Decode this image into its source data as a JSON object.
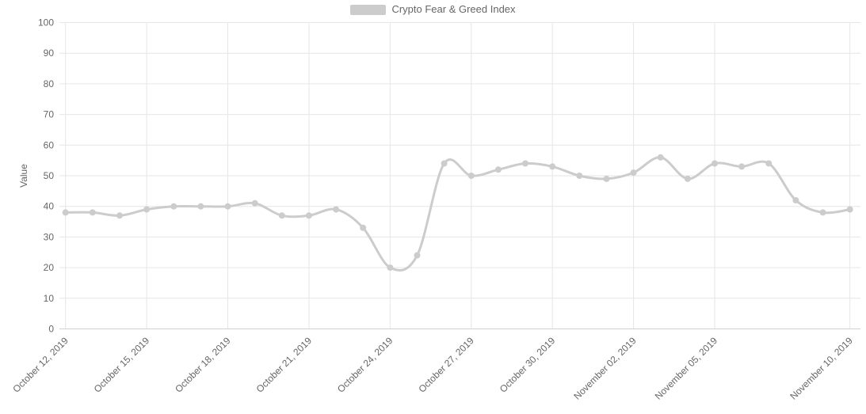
{
  "chart_data": {
    "type": "line",
    "title": "",
    "xlabel": "",
    "ylabel": "Value",
    "ylim": [
      0,
      100
    ],
    "ytick_step": 10,
    "grid": true,
    "legend_position": "top-center",
    "line_style": "spline-with-round-markers",
    "y_ticks": [
      0,
      10,
      20,
      30,
      40,
      50,
      60,
      70,
      80,
      90,
      100
    ],
    "x_ticks": [
      {
        "index": 0,
        "label": "October 12, 2019"
      },
      {
        "index": 3,
        "label": "October 15, 2019"
      },
      {
        "index": 6,
        "label": "October 18, 2019"
      },
      {
        "index": 9,
        "label": "October 21, 2019"
      },
      {
        "index": 12,
        "label": "October 24, 2019"
      },
      {
        "index": 15,
        "label": "October 27, 2019"
      },
      {
        "index": 18,
        "label": "October 30, 2019"
      },
      {
        "index": 21,
        "label": "November 02, 2019"
      },
      {
        "index": 24,
        "label": "November 05, 2019"
      },
      {
        "index": 29,
        "label": "November 10, 2019"
      }
    ],
    "series": [
      {
        "name": "Crypto Fear & Greed Index",
        "color": "#cccccc",
        "x": [
          "October 12, 2019",
          "October 13, 2019",
          "October 14, 2019",
          "October 15, 2019",
          "October 16, 2019",
          "October 17, 2019",
          "October 18, 2019",
          "October 19, 2019",
          "October 20, 2019",
          "October 21, 2019",
          "October 22, 2019",
          "October 23, 2019",
          "October 24, 2019",
          "October 25, 2019",
          "October 26, 2019",
          "October 27, 2019",
          "October 28, 2019",
          "October 29, 2019",
          "October 30, 2019",
          "October 31, 2019",
          "November 01, 2019",
          "November 02, 2019",
          "November 03, 2019",
          "November 04, 2019",
          "November 05, 2019",
          "November 06, 2019",
          "November 07, 2019",
          "November 08, 2019",
          "November 09, 2019",
          "November 10, 2019"
        ],
        "values": [
          38,
          38,
          37,
          39,
          40,
          40,
          40,
          41,
          37,
          37,
          39,
          33,
          20,
          24,
          54,
          50,
          52,
          54,
          53,
          50,
          49,
          51,
          56,
          49,
          54,
          53,
          54,
          42,
          38,
          39
        ]
      }
    ]
  },
  "legend": {
    "label": "Crypto Fear & Greed Index",
    "swatch_color": "#cccccc"
  },
  "axis": {
    "y_title": "Value"
  },
  "colors": {
    "line": "#cccccc",
    "marker": "#cccccc",
    "grid": "#e6e6e6",
    "axis_line": "#d0d0d0",
    "label": "#666666",
    "background": "#ffffff"
  }
}
